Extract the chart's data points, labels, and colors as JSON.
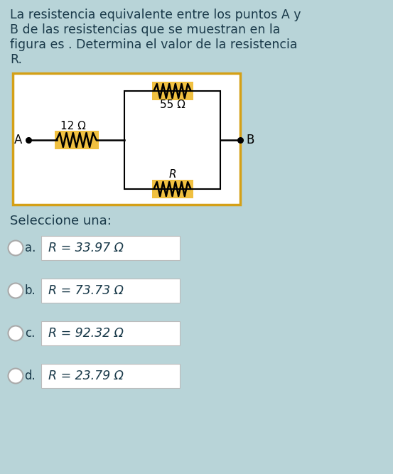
{
  "bg_color": "#b8d4d8",
  "title_lines": [
    "La resistencia equivalente entre los puntos A y",
    "B de las resistencias que se muestran en la",
    "figura es . Determina el valor de la resistencia",
    "R."
  ],
  "circuit_box_color": "#d4a017",
  "circuit_bg": "#ffffff",
  "r1_label": "12 Ω",
  "r2_label": "55 Ω",
  "r3_label": "R",
  "node_a": "A",
  "node_b": "B",
  "select_text": "Seleccione una:",
  "options": [
    {
      "letter": "a.",
      "text": "R = 33.97 Ω"
    },
    {
      "letter": "b.",
      "text": "R = 73.73 Ω"
    },
    {
      "letter": "c.",
      "text": "R = 92.32 Ω"
    },
    {
      "letter": "d.",
      "text": "R = 23.79 Ω"
    }
  ],
  "option_box_color": "#ffffff",
  "text_color": "#1a3a4a",
  "resistor_highlight": "#f0c040",
  "line_color": "#000000"
}
